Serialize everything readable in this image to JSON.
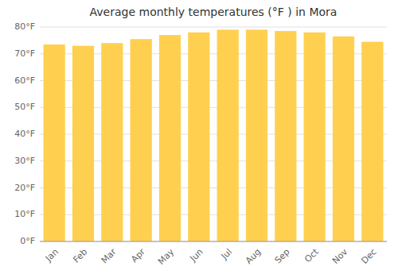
{
  "chart_data": {
    "type": "bar",
    "title": "Average monthly temperatures (°F ) in Mora",
    "categories": [
      "Jan",
      "Feb",
      "Mar",
      "Apr",
      "May",
      "Jun",
      "Jul",
      "Aug",
      "Sep",
      "Oct",
      "Nov",
      "Dec"
    ],
    "values": [
      73.5,
      73.0,
      74.0,
      75.5,
      77.0,
      78.0,
      79.0,
      79.0,
      78.5,
      78.0,
      76.5,
      74.5
    ],
    "color": "#FFD050",
    "ylim": [
      0,
      80
    ],
    "yticks": [
      {
        "value": 0,
        "label": "0°F"
      },
      {
        "value": 10,
        "label": "10°F"
      },
      {
        "value": 20,
        "label": "20°F"
      },
      {
        "value": 30,
        "label": "30°F"
      },
      {
        "value": 40,
        "label": "40°F"
      },
      {
        "value": 50,
        "label": "50°F"
      },
      {
        "value": 60,
        "label": "60°F"
      },
      {
        "value": 70,
        "label": "70°F"
      },
      {
        "value": 80,
        "label": "80°F"
      }
    ],
    "grid": true
  }
}
